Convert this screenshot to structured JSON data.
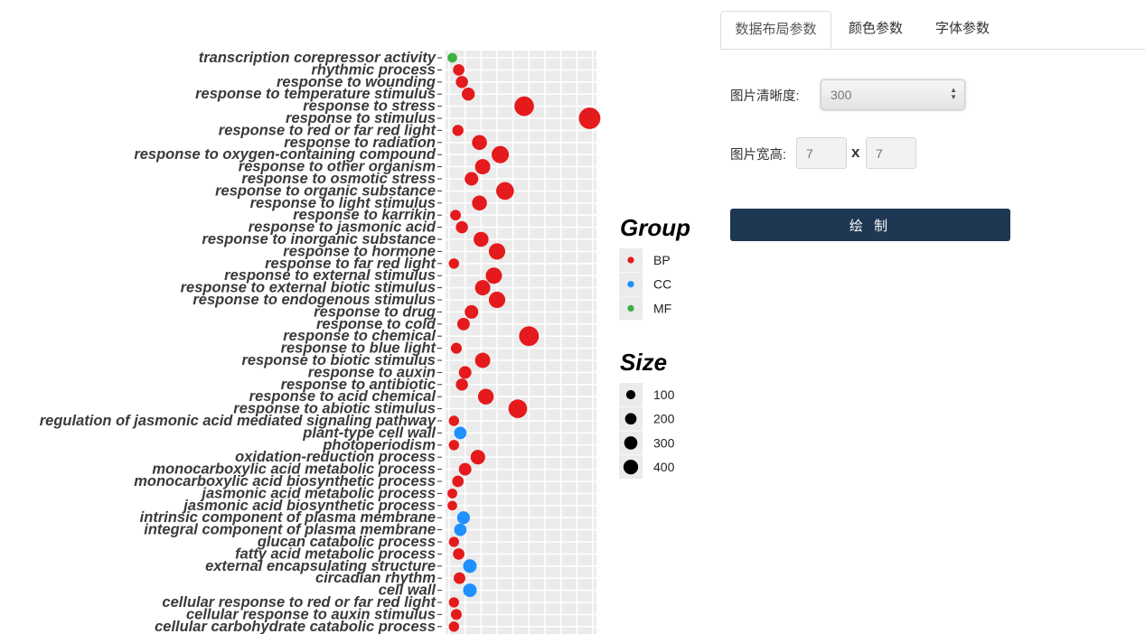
{
  "tabs": [
    {
      "label": "数据布局参数",
      "active": true
    },
    {
      "label": "颜色参数",
      "active": false
    },
    {
      "label": "字体参数",
      "active": false
    }
  ],
  "form": {
    "resolution_label": "图片清晰度:",
    "resolution_value": "300",
    "size_label": "图片宽高:",
    "width_placeholder": "7",
    "height_placeholder": "7",
    "times_symbol": "x",
    "draw_button": "绘 制"
  },
  "colors": {
    "BP": "#e41a1c",
    "CC": "#1e90ff",
    "MF": "#3cb043",
    "panel_bg": "#ebebeb",
    "button_bg": "#1e3752"
  },
  "chart_data": {
    "type": "scatter",
    "legend_group_title": "Group",
    "legend_size_title": "Size",
    "groups": [
      "BP",
      "CC",
      "MF"
    ],
    "size_legend": [
      100,
      200,
      300,
      400
    ],
    "legend_position": "right",
    "grid": true,
    "x_axis_visible": false,
    "x_range": [
      0,
      9
    ],
    "terms": [
      {
        "term": "transcription corepressor activity",
        "group": "MF",
        "x": 0.2,
        "size": 30
      },
      {
        "term": "rhythmic process",
        "group": "BP",
        "x": 0.6,
        "size": 60
      },
      {
        "term": "response to wounding",
        "group": "BP",
        "x": 0.8,
        "size": 75
      },
      {
        "term": "response to temperature stimulus",
        "group": "BP",
        "x": 1.2,
        "size": 95
      },
      {
        "term": "response to stress",
        "group": "BP",
        "x": 4.7,
        "size": 330
      },
      {
        "term": "response to stimulus",
        "group": "BP",
        "x": 8.8,
        "size": 430
      },
      {
        "term": "response to red or far red light",
        "group": "BP",
        "x": 0.55,
        "size": 55
      },
      {
        "term": "response to radiation",
        "group": "BP",
        "x": 1.9,
        "size": 150
      },
      {
        "term": "response to oxygen-containing compound",
        "group": "BP",
        "x": 3.2,
        "size": 230
      },
      {
        "term": "response to other organism",
        "group": "BP",
        "x": 2.1,
        "size": 160
      },
      {
        "term": "response to osmotic stress",
        "group": "BP",
        "x": 1.4,
        "size": 110
      },
      {
        "term": "response to organic substance",
        "group": "BP",
        "x": 3.5,
        "size": 250
      },
      {
        "term": "response to light stimulus",
        "group": "BP",
        "x": 1.9,
        "size": 150
      },
      {
        "term": "response to karrikin",
        "group": "BP",
        "x": 0.4,
        "size": 45
      },
      {
        "term": "response to jasmonic acid",
        "group": "BP",
        "x": 0.8,
        "size": 75
      },
      {
        "term": "response to inorganic substance",
        "group": "BP",
        "x": 2.0,
        "size": 150
      },
      {
        "term": "response to hormone",
        "group": "BP",
        "x": 3.0,
        "size": 200
      },
      {
        "term": "response to far red light",
        "group": "BP",
        "x": 0.3,
        "size": 40
      },
      {
        "term": "response to external stimulus",
        "group": "BP",
        "x": 2.8,
        "size": 195
      },
      {
        "term": "response to external biotic stimulus",
        "group": "BP",
        "x": 2.1,
        "size": 160
      },
      {
        "term": "response to endogenous stimulus",
        "group": "BP",
        "x": 3.0,
        "size": 200
      },
      {
        "term": "response to drug",
        "group": "BP",
        "x": 1.4,
        "size": 110
      },
      {
        "term": "response to cold",
        "group": "BP",
        "x": 0.9,
        "size": 85
      },
      {
        "term": "response to chemical",
        "group": "BP",
        "x": 5.0,
        "size": 340
      },
      {
        "term": "response to blue light",
        "group": "BP",
        "x": 0.45,
        "size": 50
      },
      {
        "term": "response to biotic stimulus",
        "group": "BP",
        "x": 2.1,
        "size": 160
      },
      {
        "term": "response to auxin",
        "group": "BP",
        "x": 1.0,
        "size": 85
      },
      {
        "term": "response to antibiotic",
        "group": "BP",
        "x": 0.8,
        "size": 75
      },
      {
        "term": "response to acid chemical",
        "group": "BP",
        "x": 2.3,
        "size": 175
      },
      {
        "term": "response to abiotic stimulus",
        "group": "BP",
        "x": 4.3,
        "size": 290
      },
      {
        "term": "regulation of jasmonic acid mediated signaling pathway",
        "group": "BP",
        "x": 0.3,
        "size": 40
      },
      {
        "term": "plant-type cell wall",
        "group": "CC",
        "x": 0.7,
        "size": 80
      },
      {
        "term": "photoperiodism",
        "group": "BP",
        "x": 0.3,
        "size": 40
      },
      {
        "term": "oxidation-reduction process",
        "group": "BP",
        "x": 1.8,
        "size": 140
      },
      {
        "term": "monocarboxylic acid metabolic process",
        "group": "BP",
        "x": 1.0,
        "size": 85
      },
      {
        "term": "monocarboxylic acid biosynthetic process",
        "group": "BP",
        "x": 0.55,
        "size": 60
      },
      {
        "term": "jasmonic acid metabolic process",
        "group": "BP",
        "x": 0.2,
        "size": 32
      },
      {
        "term": "jasmonic acid biosynthetic process",
        "group": "BP",
        "x": 0.2,
        "size": 30
      },
      {
        "term": "intrinsic component of plasma membrane",
        "group": "CC",
        "x": 0.9,
        "size": 90
      },
      {
        "term": "integral component of plasma membrane",
        "group": "CC",
        "x": 0.7,
        "size": 80
      },
      {
        "term": "glucan catabolic process",
        "group": "BP",
        "x": 0.3,
        "size": 38
      },
      {
        "term": "fatty acid metabolic process",
        "group": "BP",
        "x": 0.6,
        "size": 60
      },
      {
        "term": "external encapsulating structure",
        "group": "CC",
        "x": 1.3,
        "size": 110
      },
      {
        "term": "circadian rhythm",
        "group": "BP",
        "x": 0.65,
        "size": 65
      },
      {
        "term": "cell wall",
        "group": "CC",
        "x": 1.3,
        "size": 110
      },
      {
        "term": "cellular response to red or far red light",
        "group": "BP",
        "x": 0.3,
        "size": 38
      },
      {
        "term": "cellular response to auxin stimulus",
        "group": "BP",
        "x": 0.45,
        "size": 48
      },
      {
        "term": "cellular carbohydrate catabolic process",
        "group": "BP",
        "x": 0.3,
        "size": 40
      }
    ]
  }
}
